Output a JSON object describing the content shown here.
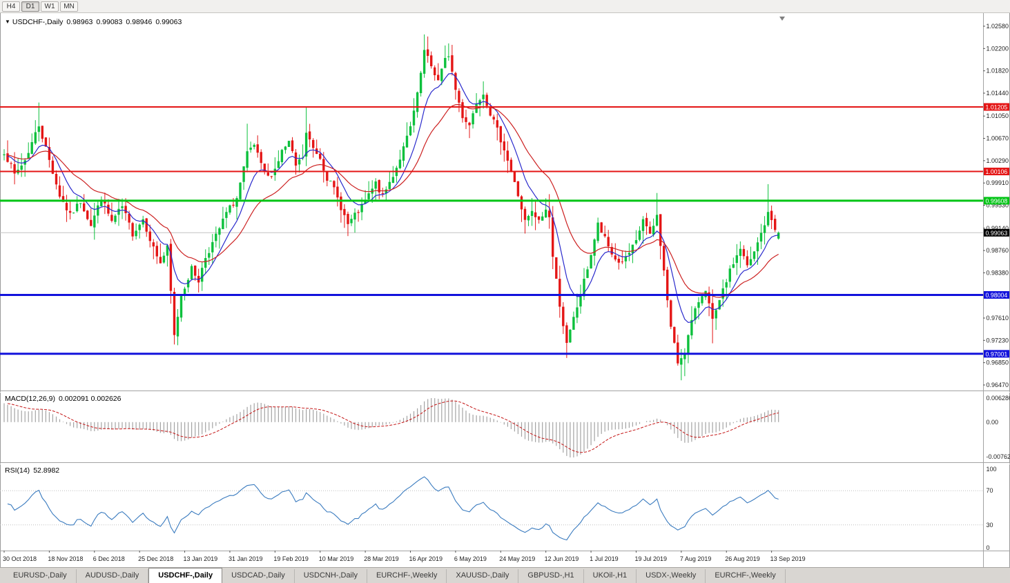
{
  "window": {
    "toolbar": {
      "timeframes": [
        "H4",
        "D1",
        "W1",
        "MN"
      ],
      "active": "D1"
    },
    "tabs": {
      "items": [
        "EURUSD-,Daily",
        "AUDUSD-,Daily",
        "USDCHF-,Daily",
        "USDCAD-,Daily",
        "USDCNH-,Daily",
        "EURCHF-,Weekly",
        "XAUUSD-,Daily",
        "GBPUSD-,H1",
        "UKOil-,H1",
        "USDX-,Weekly",
        "EURCHF-,Weekly"
      ],
      "active_index": 2
    }
  },
  "main_chart": {
    "legend": {
      "symbol": "USDCHF-,Daily",
      "open": "0.98963",
      "high": "0.99083",
      "low": "0.98946",
      "close": "0.99063"
    },
    "price_axis_labels": [
      "1.02580",
      "1.02200",
      "1.01820",
      "1.01440",
      "1.01050",
      "1.00670",
      "1.00290",
      "0.99910",
      "0.99530",
      "0.99140",
      "0.98760",
      "0.98380",
      "0.98000",
      "0.97610",
      "0.97230",
      "0.96850",
      "0.96470"
    ],
    "hlines": [
      {
        "price": 1.01205,
        "label": "1.01205",
        "color": "#e41414",
        "width": 2
      },
      {
        "price": 1.00106,
        "label": "1.00106",
        "color": "#e41414",
        "width": 2
      },
      {
        "price": 0.99608,
        "label": "0.99608",
        "color": "#00c414",
        "width": 3
      },
      {
        "price": 0.98004,
        "label": "0.98004",
        "color": "#1212dc",
        "width": 3
      },
      {
        "price": 0.97001,
        "label": "0.97001",
        "color": "#1212dc",
        "width": 3
      }
    ],
    "current_price": {
      "value": 0.99063,
      "label": "0.99063"
    }
  },
  "macd": {
    "legend_name": "MACD(12,26,9)",
    "legend_values": "0.002091 0.002626",
    "axis_labels": {
      "max": "0.006286",
      "zero": "0.00",
      "min": "-0.00762"
    },
    "params": {
      "fast": 12,
      "slow": 26,
      "signal": 9
    }
  },
  "rsi": {
    "legend_name": "RSI(14)",
    "legend_value": "52.8982",
    "period": 14,
    "levels": [
      70,
      30
    ],
    "axis_labels": [
      "100",
      "70",
      "30",
      "0"
    ]
  },
  "time_axis": {
    "labels": [
      "30 Oct 2018",
      "18 Nov 2018",
      "6 Dec 2018",
      "25 Dec 2018",
      "13 Jan 2019",
      "31 Jan 2019",
      "19 Feb 2019",
      "10 Mar 2019",
      "28 Mar 2019",
      "16 Apr 2019",
      "6 May 2019",
      "24 May 2019",
      "12 Jun 2019",
      "1 Jul 2019",
      "19 Jul 2019",
      "7 Aug 2019",
      "26 Aug 2019",
      "13 Sep 2019"
    ],
    "candles_per_label": 13
  },
  "chart_data": {
    "type": "candlestick-ohlc",
    "symbol": "USDCHF",
    "timeframe": "Daily",
    "candle_count": 224,
    "seed": 7,
    "ma_fast_period": 9,
    "ma_slow_period": 23,
    "last_candle": {
      "o": 0.98963,
      "h": 0.99083,
      "l": 0.98946,
      "c": 0.99063
    },
    "close_waypoints": [
      [
        0,
        1.0045
      ],
      [
        3,
        1.0005
      ],
      [
        6,
        1.003
      ],
      [
        10,
        1.009
      ],
      [
        13,
        1.003
      ],
      [
        16,
        0.997
      ],
      [
        19,
        0.9935
      ],
      [
        22,
        0.996
      ],
      [
        25,
        0.992
      ],
      [
        28,
        0.9965
      ],
      [
        31,
        0.9925
      ],
      [
        34,
        0.995
      ],
      [
        37,
        0.9905
      ],
      [
        40,
        0.993
      ],
      [
        43,
        0.988
      ],
      [
        45,
        0.9855
      ],
      [
        47,
        0.988
      ],
      [
        49,
        0.973
      ],
      [
        51,
        0.98
      ],
      [
        54,
        0.9845
      ],
      [
        56,
        0.9825
      ],
      [
        58,
        0.9865
      ],
      [
        61,
        0.99
      ],
      [
        64,
        0.994
      ],
      [
        67,
        0.9965
      ],
      [
        70,
        1.004
      ],
      [
        72,
        1.0055
      ],
      [
        74,
        1.002
      ],
      [
        76,
        1.0
      ],
      [
        78,
        1.0015
      ],
      [
        80,
        1.0045
      ],
      [
        82,
        1.006
      ],
      [
        84,
        1.002
      ],
      [
        86,
        1.0035
      ],
      [
        87,
        1.0075
      ],
      [
        89,
        1.005
      ],
      [
        91,
        1.0035
      ],
      [
        93,
        1.0
      ],
      [
        95,
        0.998
      ],
      [
        97,
        0.995
      ],
      [
        99,
        0.992
      ],
      [
        101,
        0.9935
      ],
      [
        103,
        0.995
      ],
      [
        105,
        0.997
      ],
      [
        107,
        0.999
      ],
      [
        109,
        0.9968
      ],
      [
        111,
        0.9992
      ],
      [
        113,
        1.0018
      ],
      [
        115,
        1.005
      ],
      [
        117,
        1.0085
      ],
      [
        119,
        1.014
      ],
      [
        121,
        1.0215
      ],
      [
        123,
        1.019
      ],
      [
        125,
        1.0165
      ],
      [
        127,
        1.02
      ],
      [
        128,
        1.021
      ],
      [
        130,
        1.015
      ],
      [
        132,
        1.0105
      ],
      [
        134,
        1.009
      ],
      [
        136,
        1.013
      ],
      [
        138,
        1.0145
      ],
      [
        140,
        1.011
      ],
      [
        142,
        1.008
      ],
      [
        144,
        1.005
      ],
      [
        146,
        1.001
      ],
      [
        148,
        0.997
      ],
      [
        150,
        0.9925
      ],
      [
        152,
        0.994
      ],
      [
        154,
        0.9925
      ],
      [
        156,
        0.9945
      ],
      [
        157,
        0.9935
      ],
      [
        158,
        0.9865
      ],
      [
        160,
        0.9785
      ],
      [
        162,
        0.9715
      ],
      [
        164,
        0.976
      ],
      [
        166,
        0.98
      ],
      [
        169,
        0.987
      ],
      [
        171,
        0.992
      ],
      [
        173,
        0.9895
      ],
      [
        175,
        0.987
      ],
      [
        177,
        0.9855
      ],
      [
        179,
        0.9862
      ],
      [
        182,
        0.989
      ],
      [
        184,
        0.993
      ],
      [
        186,
        0.99
      ],
      [
        188,
        0.9935
      ],
      [
        190,
        0.984
      ],
      [
        192,
        0.9745
      ],
      [
        194,
        0.9685
      ],
      [
        196,
        0.9705
      ],
      [
        198,
        0.9755
      ],
      [
        200,
        0.979
      ],
      [
        202,
        0.9812
      ],
      [
        204,
        0.9755
      ],
      [
        206,
        0.9788
      ],
      [
        208,
        0.9825
      ],
      [
        210,
        0.9855
      ],
      [
        212,
        0.988
      ],
      [
        214,
        0.9848
      ],
      [
        216,
        0.9872
      ],
      [
        218,
        0.9905
      ],
      [
        220,
        0.9938
      ],
      [
        221,
        0.9928
      ],
      [
        222,
        0.9915
      ],
      [
        223,
        0.99063
      ]
    ],
    "wick_overrides": [
      [
        10,
        "h",
        1.0128
      ],
      [
        49,
        "l",
        0.9716
      ],
      [
        70,
        "h",
        1.0092
      ],
      [
        87,
        "h",
        1.012
      ],
      [
        121,
        "h",
        1.0244
      ],
      [
        128,
        "h",
        1.0228
      ],
      [
        156,
        "h",
        0.9965
      ],
      [
        157,
        "h",
        0.9972
      ],
      [
        162,
        "l",
        0.9693
      ],
      [
        188,
        "h",
        0.9974
      ],
      [
        195,
        "l",
        0.9655
      ],
      [
        196,
        "l",
        0.9662
      ],
      [
        204,
        "l",
        0.9718
      ],
      [
        220,
        "h",
        0.9989
      ]
    ]
  },
  "colors": {
    "bull": "#0cc03c",
    "bear": "#e41616",
    "ma_fast": "#2929cc",
    "ma_slow": "#cc2020",
    "macd_hist": "#a3a3a3",
    "macd_signal": "#c41414",
    "rsi_line": "#3a7bbf",
    "last_price": "#000000",
    "axis_text": "#1c1c1c",
    "level_dotted": "#bdbdbd",
    "current_line": "#c2c2c2"
  }
}
